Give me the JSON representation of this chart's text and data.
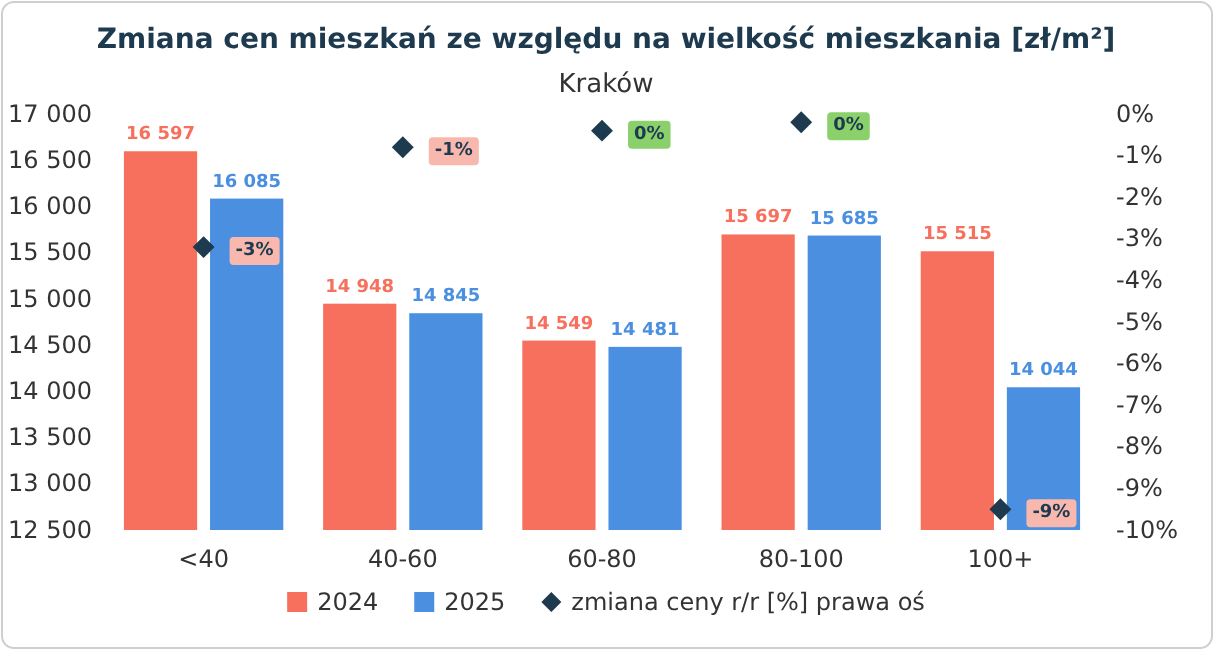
{
  "chart_data": {
    "type": "bar",
    "title": "Zmiana cen mieszkań ze względu na wielkość mieszkania [zł/m²]",
    "subtitle": "Kraków",
    "categories": [
      "<40",
      "40-60",
      "60-80",
      "80-100",
      "100+"
    ],
    "series": [
      {
        "name": "2024",
        "color": "#f7705d",
        "values": [
          16597,
          14948,
          14549,
          15697,
          15515
        ],
        "value_labels": [
          "16 597",
          "14 948",
          "14 549",
          "15 697",
          "15 515"
        ]
      },
      {
        "name": "2025",
        "color": "#4a8fe0",
        "values": [
          16085,
          14845,
          14481,
          15685,
          14044
        ],
        "value_labels": [
          "16 085",
          "14 845",
          "14 481",
          "15 685",
          "14 044"
        ]
      },
      {
        "name": "zmiana ceny r/r [%] prawa oś",
        "type": "scatter",
        "axis": "y2",
        "marker": "diamond",
        "color": "#1e3a4f",
        "values": [
          -3.2,
          -0.8,
          -0.4,
          -0.2,
          -9.5
        ],
        "value_labels": [
          "-3%",
          "-1%",
          "0%",
          "0%",
          "-9%"
        ]
      }
    ],
    "ylim": [
      12500,
      17000
    ],
    "yticks": [
      {
        "value": 12500,
        "label": "12 500"
      },
      {
        "value": 13000,
        "label": "13 000"
      },
      {
        "value": 13500,
        "label": "13 500"
      },
      {
        "value": 14000,
        "label": "14 000"
      },
      {
        "value": 14500,
        "label": "14 500"
      },
      {
        "value": 15000,
        "label": "15 000"
      },
      {
        "value": 15500,
        "label": "15 500"
      },
      {
        "value": 16000,
        "label": "16 000"
      },
      {
        "value": 16500,
        "label": "16 500"
      },
      {
        "value": 17000,
        "label": "17 000"
      }
    ],
    "y2lim": [
      -10,
      0
    ],
    "y2ticks": [
      {
        "value": 0,
        "label": "0%"
      },
      {
        "value": -1,
        "label": "-1%"
      },
      {
        "value": -2,
        "label": "-2%"
      },
      {
        "value": -3,
        "label": "-3%"
      },
      {
        "value": -4,
        "label": "-4%"
      },
      {
        "value": -5,
        "label": "-5%"
      },
      {
        "value": -6,
        "label": "-6%"
      },
      {
        "value": -7,
        "label": "-7%"
      },
      {
        "value": -8,
        "label": "-8%"
      },
      {
        "value": -9,
        "label": "-9%"
      },
      {
        "value": -10,
        "label": "-10%"
      }
    ],
    "grid": false,
    "legend": "bottom"
  }
}
